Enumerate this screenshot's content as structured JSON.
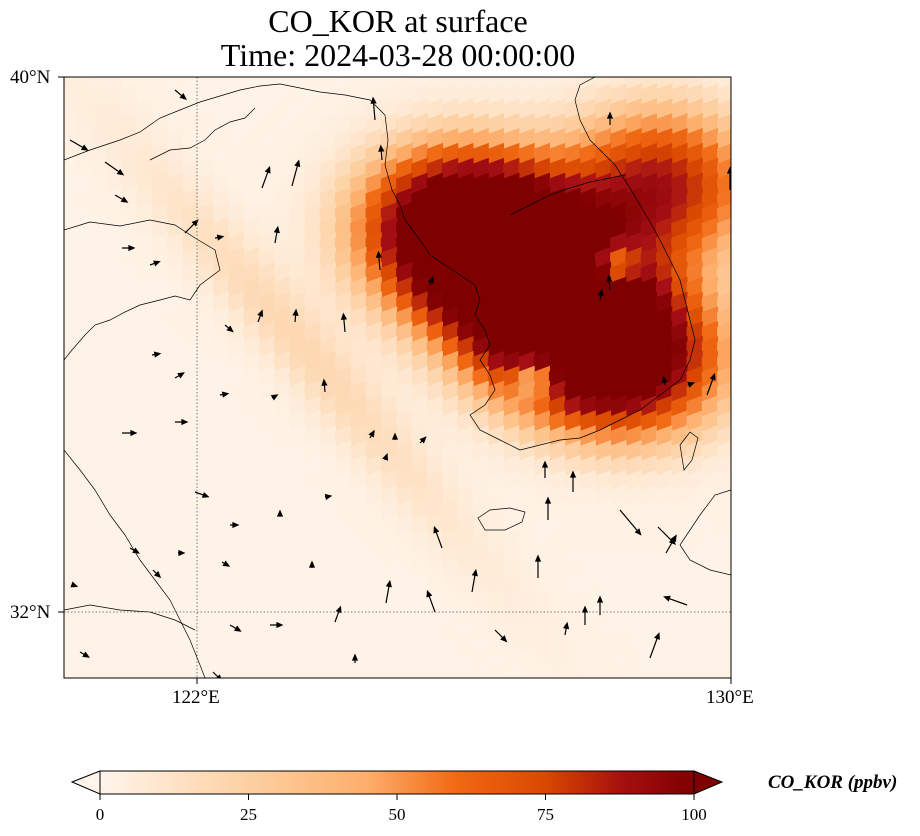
{
  "title": {
    "line1": "CO_KOR at surface",
    "line2": "Time: 2024-03-28 00:00:00"
  },
  "map": {
    "projection": "PlateCarree",
    "lon_range": [
      120.4,
      130.0
    ],
    "lat_range": [
      31.1,
      40.0
    ],
    "gridlines": "dotted",
    "lon_ticks": [
      {
        "value": 122,
        "label": "122°E"
      },
      {
        "value": 130,
        "label": "130°E"
      }
    ],
    "lat_ticks": [
      {
        "value": 40,
        "label": "40°N"
      },
      {
        "value": 32,
        "label": "32°N"
      }
    ],
    "field": "CO_KOR",
    "hotspots": [
      {
        "lon": 126.9,
        "lat": 37.3,
        "peak": 120
      },
      {
        "lon": 127.6,
        "lat": 36.3,
        "peak": 115
      },
      {
        "lon": 126.0,
        "lat": 37.8,
        "peak": 110
      },
      {
        "lon": 128.6,
        "lat": 35.8,
        "peak": 90
      },
      {
        "lon": 129.0,
        "lat": 38.4,
        "peak": 80
      }
    ],
    "low_spots": [
      {
        "lon": 127.2,
        "lat": 35.6,
        "value": 20
      },
      {
        "lon": 128.3,
        "lat": 37.2,
        "value": 40
      }
    ]
  },
  "colorbar": {
    "label": "CO_KOR (ppbv)",
    "min": 0,
    "max": 100,
    "extend": "both",
    "ticks": [
      "0",
      "25",
      "50",
      "75",
      "100"
    ],
    "colors": [
      "#fff5eb",
      "#fee6ce",
      "#fdd0a2",
      "#fdae6b",
      "#fd8d3c",
      "#f16913",
      "#d94801",
      "#a63603",
      "#7f2704"
    ]
  },
  "colorbar_dark_end": "#7f0000"
}
